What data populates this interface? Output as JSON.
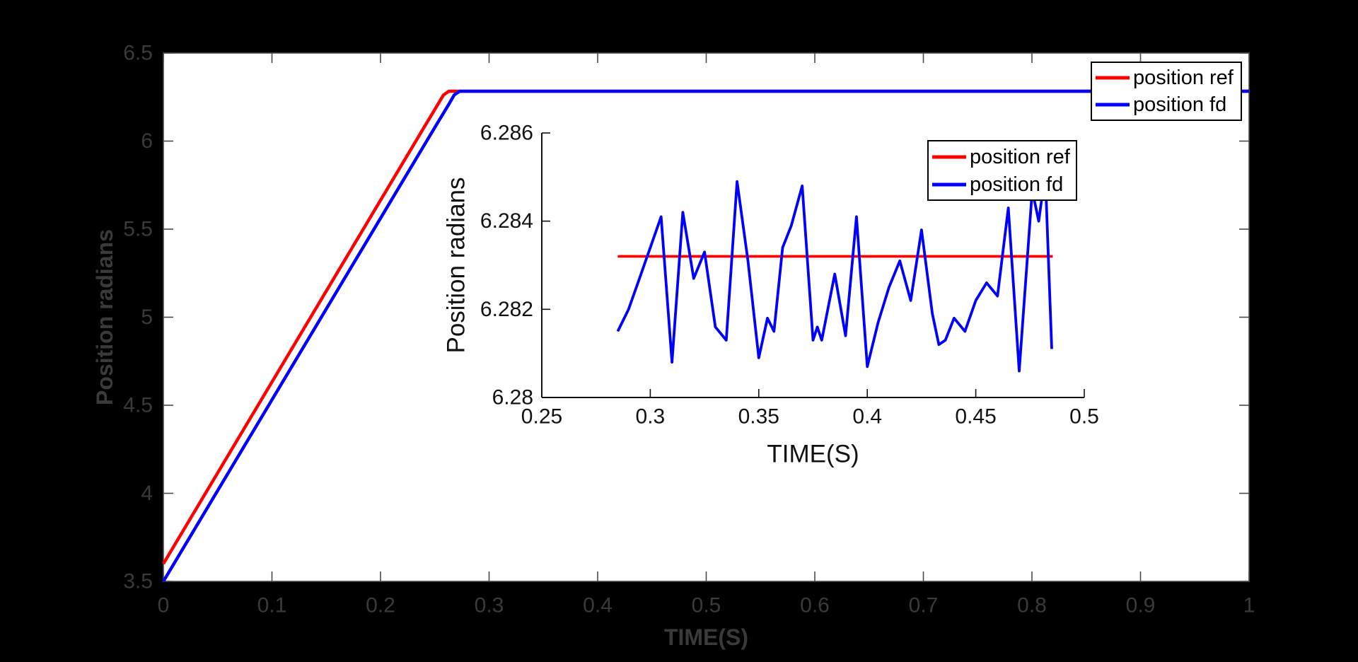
{
  "window": {
    "background": "#000000"
  },
  "chart_data": [
    {
      "id": "main",
      "type": "line",
      "title": "",
      "xlabel": "TIME(S)",
      "ylabel": "Position radians",
      "xlim": [
        0,
        1
      ],
      "ylim": [
        3.5,
        6.5
      ],
      "grid": false,
      "box": true,
      "plot_background": "#ffffff",
      "axis_text_color": "#3a3a3a",
      "tick_color": "#4a4a4a",
      "xtick_values": [
        0,
        0.1,
        0.2,
        0.3,
        0.4,
        0.5,
        0.6,
        0.7,
        0.8,
        0.9,
        1
      ],
      "xtick_labels": [
        "0",
        "0.1",
        "0.2",
        "0.3",
        "0.4",
        "0.5",
        "0.6",
        "0.7",
        "0.8",
        "0.9",
        "1"
      ],
      "ytick_values": [
        3.5,
        4,
        4.5,
        5,
        5.5,
        6,
        6.5
      ],
      "ytick_labels": [
        "3.5",
        "4",
        "4.5",
        "5",
        "5.5",
        "6",
        "6.5"
      ],
      "legend": {
        "position": "top-right",
        "border_color": "#000000",
        "background": "#ffffff",
        "text_color": "#000000",
        "entries": [
          {
            "label": "position ref",
            "color": "#ff0000"
          },
          {
            "label": "position fd",
            "color": "#0000ff"
          }
        ]
      },
      "series": [
        {
          "name": "position ref",
          "color": "#ff0000",
          "points": [
            [
              0,
              3.6
            ],
            [
              0.24,
              6.077
            ],
            [
              0.252,
              6.2
            ],
            [
              0.258,
              6.262
            ],
            [
              0.263,
              6.2832
            ],
            [
              1,
              6.2832
            ]
          ]
        },
        {
          "name": "position fd",
          "color": "#0000ff",
          "points": [
            [
              0,
              3.5
            ],
            [
              0.25,
              6.078
            ],
            [
              0.262,
              6.2
            ],
            [
              0.268,
              6.263
            ],
            [
              0.273,
              6.2832
            ],
            [
              1,
              6.2832
            ]
          ]
        }
      ]
    },
    {
      "id": "inset",
      "type": "line",
      "title": "",
      "xlabel": "TIME(S)",
      "ylabel": "Position radians",
      "xlim": [
        0.25,
        0.5
      ],
      "ylim": [
        6.28,
        6.286
      ],
      "grid": false,
      "box": false,
      "plot_background": null,
      "axis_text_color": "#111111",
      "tick_color": "#111111",
      "xtick_values": [
        0.25,
        0.3,
        0.35,
        0.4,
        0.45,
        0.5
      ],
      "xtick_labels": [
        "0.25",
        "0.3",
        "0.35",
        "0.4",
        "0.45",
        "0.5"
      ],
      "ytick_values": [
        6.28,
        6.282,
        6.284,
        6.286
      ],
      "ytick_labels": [
        "6.28",
        "6.282",
        "6.284",
        "6.286"
      ],
      "legend": {
        "position": "top-right",
        "border_color": "#000000",
        "background": "#ffffff",
        "text_color": "#000000",
        "entries": [
          {
            "label": "position ref",
            "color": "#ff0000"
          },
          {
            "label": "position fd",
            "color": "#0000ff"
          }
        ]
      },
      "series": [
        {
          "name": "position ref",
          "color": "#ff0000",
          "points": [
            [
              0.285,
              6.2832
            ],
            [
              0.4855,
              6.2832
            ]
          ]
        },
        {
          "name": "position fd",
          "color": "#0000ff",
          "points": [
            [
              0.285,
              6.2815
            ],
            [
              0.29,
              6.282
            ],
            [
              0.295,
              6.2827
            ],
            [
              0.3,
              6.2834
            ],
            [
              0.305,
              6.2841
            ],
            [
              0.31,
              6.2808
            ],
            [
              0.315,
              6.2842
            ],
            [
              0.32,
              6.2827
            ],
            [
              0.325,
              6.2833
            ],
            [
              0.33,
              6.2816
            ],
            [
              0.335,
              6.2813
            ],
            [
              0.34,
              6.2849
            ],
            [
              0.345,
              6.2831
            ],
            [
              0.35,
              6.2809
            ],
            [
              0.354,
              6.2818
            ],
            [
              0.357,
              6.2815
            ],
            [
              0.361,
              6.2834
            ],
            [
              0.365,
              6.2839
            ],
            [
              0.37,
              6.2848
            ],
            [
              0.375,
              6.2813
            ],
            [
              0.377,
              6.2816
            ],
            [
              0.379,
              6.2813
            ],
            [
              0.385,
              6.2828
            ],
            [
              0.39,
              6.2814
            ],
            [
              0.395,
              6.2841
            ],
            [
              0.4,
              6.2807
            ],
            [
              0.405,
              6.2817
            ],
            [
              0.41,
              6.2825
            ],
            [
              0.415,
              6.2831
            ],
            [
              0.42,
              6.2822
            ],
            [
              0.425,
              6.2838
            ],
            [
              0.43,
              6.2819
            ],
            [
              0.433,
              6.2812
            ],
            [
              0.436,
              6.2813
            ],
            [
              0.44,
              6.2818
            ],
            [
              0.445,
              6.2815
            ],
            [
              0.45,
              6.2822
            ],
            [
              0.455,
              6.2826
            ],
            [
              0.46,
              6.2823
            ],
            [
              0.465,
              6.2843
            ],
            [
              0.47,
              6.2806
            ],
            [
              0.476,
              6.2847
            ],
            [
              0.479,
              6.284
            ],
            [
              0.482,
              6.2851
            ],
            [
              0.485,
              6.2811
            ]
          ]
        }
      ]
    }
  ]
}
